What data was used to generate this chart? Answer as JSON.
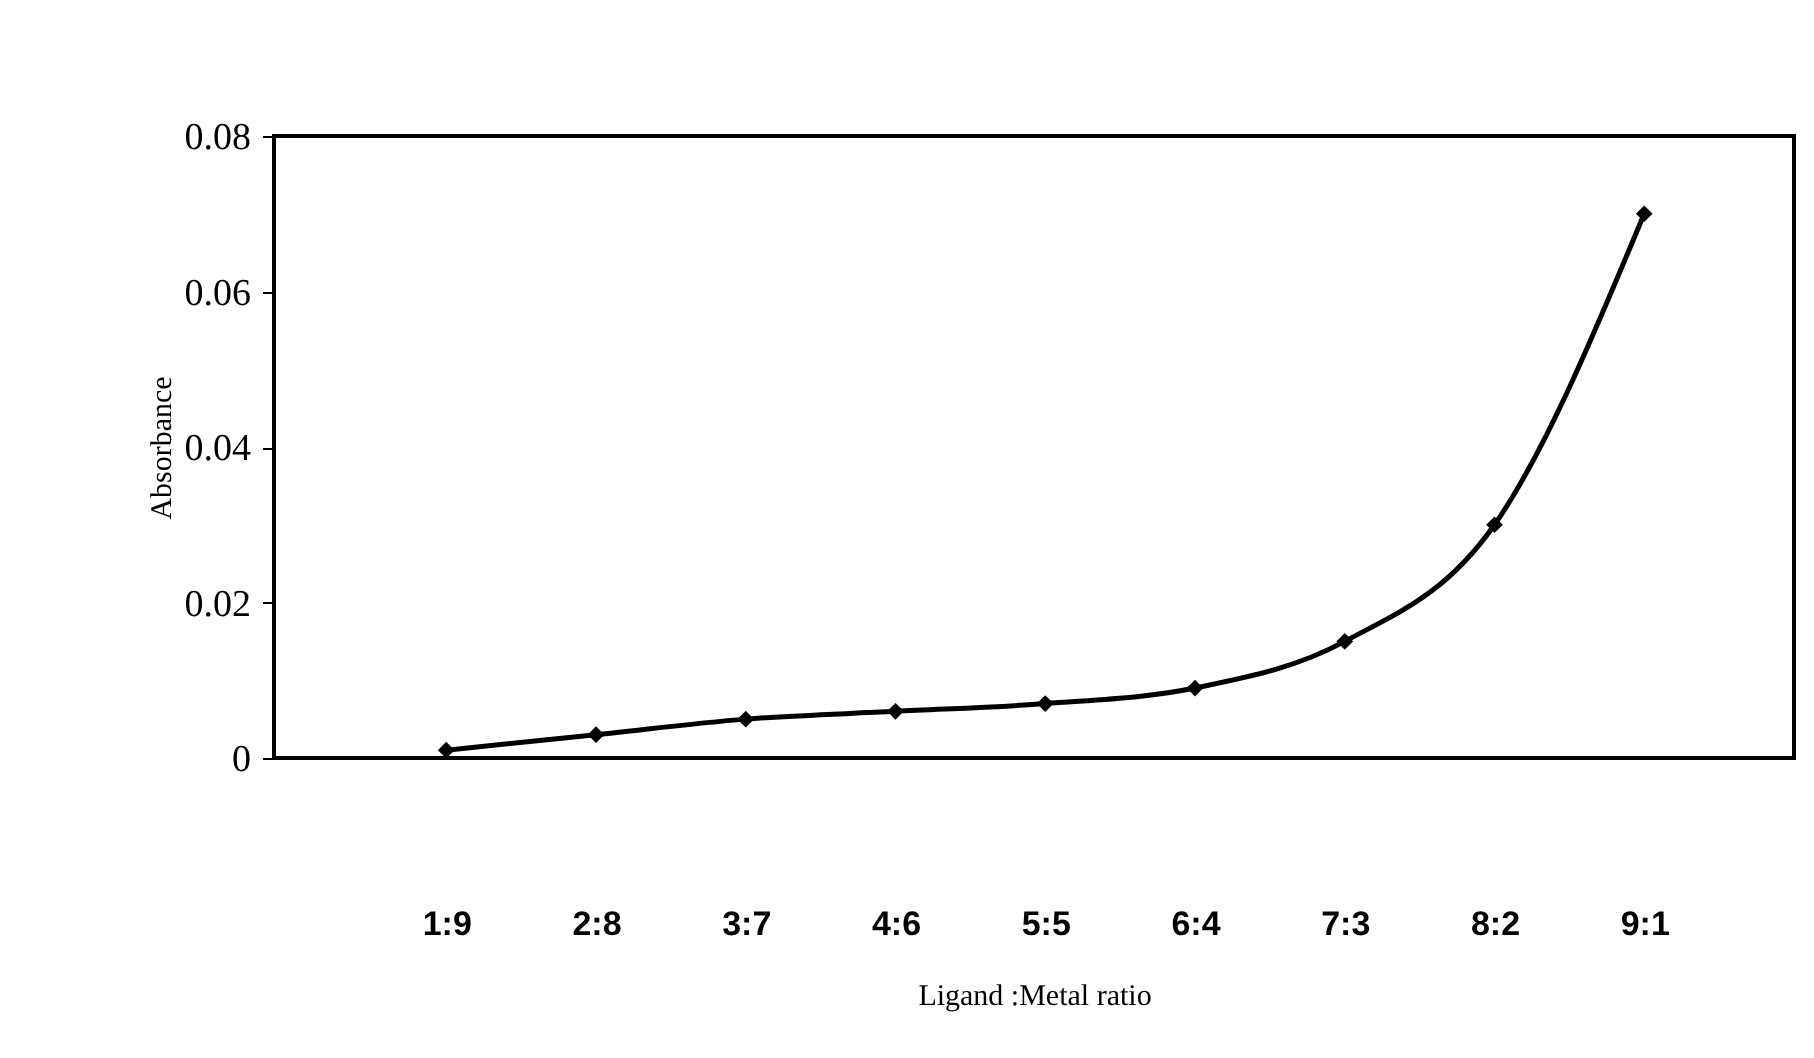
{
  "chart_data": {
    "type": "line",
    "xlabel": "Ligand :Metal ratio",
    "ylabel": "Absorbance",
    "categories": [
      "1:9",
      "2:8",
      "3:7",
      "4:6",
      "5:5",
      "6:4",
      "7:3",
      "8:2",
      "9:1"
    ],
    "series": [
      {
        "color": "#000000",
        "values": [
          0.001,
          0.003,
          0.005,
          0.006,
          0.007,
          0.009,
          0.015,
          0.03,
          0.07
        ]
      }
    ],
    "ylim": [
      0,
      0.08
    ],
    "yticks": [
      {
        "value": 0,
        "label": "0"
      },
      0.02,
      0.04,
      0.06,
      0.08
    ],
    "grid": false,
    "legend": false,
    "marker": "diamond",
    "line_style": "solid"
  }
}
